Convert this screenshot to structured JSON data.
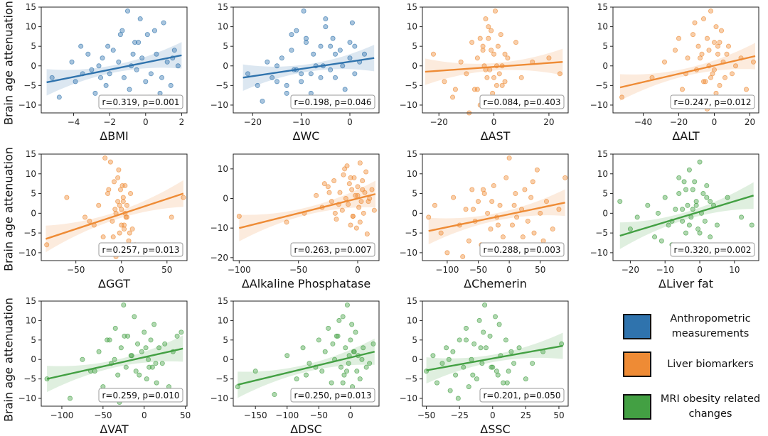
{
  "figure": {
    "ylabel": "Brain age attenuation"
  },
  "legend": [
    {
      "label": "Anthropometric measurements",
      "color": "#2f73ad"
    },
    {
      "label": "Liver biomarkers",
      "color": "#ee8b35"
    },
    {
      "label": "MRI obesity related changes",
      "color": "#43a043"
    }
  ],
  "chart_data": [
    {
      "type": "scatter",
      "xlabel": "ΔBMI",
      "color": "#2f73ad",
      "xlim": [
        -5.8,
        2.3
      ],
      "ylim": [
        -12,
        15
      ],
      "xticks": [
        -4,
        -2,
        0,
        2
      ],
      "yticks": [
        -10,
        -5,
        0,
        5,
        10,
        15
      ],
      "fit": {
        "x": [
          -5.5,
          2.0
        ],
        "y": [
          -4.2,
          2.7
        ]
      },
      "annotation": "r=0.319, p=0.001",
      "x": [
        -5.2,
        -4.8,
        -4.1,
        -3.9,
        -3.5,
        -3.2,
        -3.0,
        -2.8,
        -2.6,
        -2.4,
        -2.2,
        -2.1,
        -2.0,
        -1.8,
        -1.7,
        -1.5,
        -1.4,
        -1.2,
        -1.0,
        -0.9,
        -0.8,
        -0.6,
        -0.5,
        -0.3,
        -0.2,
        0.0,
        0.1,
        0.3,
        0.5,
        0.6,
        0.8,
        1.0,
        1.2,
        1.4,
        1.6,
        1.8,
        -1.0,
        -0.4,
        0.2,
        -2.5,
        -3.6,
        -1.3,
        0.9,
        -0.7,
        1.5
      ],
      "y": [
        -3,
        -8,
        1,
        -4,
        -2,
        3,
        -1,
        -7,
        0,
        2,
        -5,
        5,
        -2,
        4,
        -9,
        1,
        8,
        -3,
        14,
        -6,
        0,
        6,
        -1,
        12,
        2,
        -4,
        8,
        -2,
        9,
        3,
        -7,
        11,
        1,
        -5,
        4,
        0,
        -10,
        6,
        -8,
        -3,
        5,
        9,
        -3,
        3,
        2
      ]
    },
    {
      "type": "scatter",
      "xlabel": "ΔWC",
      "color": "#2f73ad",
      "xlim": [
        -24,
        6
      ],
      "ylim": [
        -12,
        15
      ],
      "xticks": [
        -20,
        -10,
        0
      ],
      "yticks": [
        -10,
        -5,
        0,
        5,
        10,
        15
      ],
      "fit": {
        "x": [
          -22,
          5
        ],
        "y": [
          -3.0,
          2.0
        ]
      },
      "annotation": "r=0.198, p=0.046",
      "x": [
        -21,
        -19,
        -17,
        -16,
        -15,
        -14,
        -13,
        -12,
        -11.5,
        -11,
        -10,
        -9.5,
        -9,
        -8,
        -7.5,
        -7,
        -6,
        -5.5,
        -5,
        -4,
        -3.5,
        -3,
        -2,
        -1.5,
        -1,
        0,
        0.5,
        1,
        2,
        3,
        -18,
        -13,
        -9,
        -6,
        -4,
        -2,
        0,
        -10,
        -7,
        -12,
        -15,
        -5,
        -8,
        -3,
        1,
        -11
      ],
      "y": [
        -2,
        -5,
        1,
        -3,
        0,
        2,
        -7,
        4,
        -1,
        9,
        -4,
        14,
        6,
        -2,
        3,
        -8,
        5,
        0,
        10,
        -1,
        7,
        -3,
        4,
        0,
        -6,
        2,
        11,
        -2,
        1,
        3,
        -9,
        -5,
        7,
        -3,
        5,
        -10,
        6,
        -2,
        0,
        8,
        -4,
        12,
        -7,
        3,
        5,
        -1
      ]
    },
    {
      "type": "scatter",
      "xlabel": "ΔAST",
      "color": "#ee8b35",
      "xlim": [
        -26,
        27
      ],
      "ylim": [
        -12,
        15
      ],
      "xticks": [
        -20,
        0,
        20
      ],
      "yticks": [
        -10,
        -5,
        0,
        5,
        10,
        15
      ],
      "fit": {
        "x": [
          -25,
          25
        ],
        "y": [
          -1.5,
          1.0
        ]
      },
      "annotation": "r=0.084, p=0.403",
      "x": [
        -22,
        -18,
        -15,
        -12,
        -10,
        -8,
        -7,
        -6,
        -5,
        -4,
        -3.5,
        -3,
        -2.5,
        -2,
        -1.5,
        -1,
        -0.5,
        0,
        0.5,
        1,
        1.5,
        2,
        2.5,
        3,
        4,
        5,
        6,
        8,
        10,
        14,
        -9,
        -6,
        -4,
        -2,
        0,
        2,
        4,
        -3,
        -1,
        1,
        3,
        -5,
        20,
        24,
        -14
      ],
      "y": [
        3,
        -4,
        -8,
        1,
        -2,
        6,
        -6,
        2,
        -10,
        4,
        0,
        12,
        -3,
        7,
        -1,
        9,
        -7,
        3,
        14,
        -5,
        5,
        -2,
        8,
        0,
        -4,
        2,
        -9,
        6,
        -3,
        1,
        -12,
        -6,
        5,
        10,
        -3,
        -8,
        3,
        -1,
        4,
        0,
        -5,
        7,
        2,
        -2,
        -6
      ]
    },
    {
      "type": "scatter",
      "xlabel": "ΔALT",
      "color": "#ee8b35",
      "xlim": [
        -57,
        25
      ],
      "ylim": [
        -12,
        15
      ],
      "xticks": [
        -40,
        -20,
        0,
        20
      ],
      "yticks": [
        -10,
        -5,
        0,
        5,
        10,
        15
      ],
      "fit": {
        "x": [
          -53,
          23
        ],
        "y": [
          -5.5,
          2.5
        ]
      },
      "annotation": "r=0.247, p=0.012",
      "x": [
        -52,
        -35,
        -28,
        -22,
        -18,
        -15,
        -12,
        -10,
        -9,
        -8,
        -7,
        -6,
        -5,
        -4,
        -3,
        -2,
        -1,
        0,
        1,
        2,
        3,
        4,
        5,
        6,
        8,
        10,
        12,
        15,
        18,
        22,
        -14,
        -11,
        -6,
        -3,
        0,
        3,
        6,
        -8,
        -2,
        2,
        -20,
        -4,
        7,
        -16,
        1
      ],
      "y": [
        -8,
        -3,
        1,
        4,
        -6,
        2,
        8,
        -1,
        5,
        -10,
        3,
        12,
        -4,
        7,
        0,
        14,
        -2,
        6,
        -7,
        3,
        -5,
        9,
        1,
        -3,
        5,
        -2,
        0,
        2,
        -6,
        1,
        -9,
        11,
        -4,
        4,
        -1,
        6,
        -8,
        2,
        -3,
        5,
        7,
        -11,
        3,
        -2,
        10
      ]
    },
    {
      "type": "scatter",
      "xlabel": "ΔGGT",
      "color": "#ee8b35",
      "xlim": [
        -88,
        72
      ],
      "ylim": [
        -12,
        15
      ],
      "xticks": [
        -50,
        0,
        50
      ],
      "yticks": [
        -10,
        -5,
        0,
        5,
        10,
        15
      ],
      "fit": {
        "x": [
          -83,
          68
        ],
        "y": [
          -6.5,
          5.0
        ]
      },
      "annotation": "r=0.257, p=0.013",
      "x": [
        -82,
        -60,
        -40,
        -30,
        -25,
        -20,
        -15,
        -12,
        -10,
        -8,
        -6,
        -5,
        -4,
        -3,
        -2,
        -1,
        0,
        1,
        2,
        3,
        4,
        5,
        6,
        8,
        10,
        12,
        15,
        55,
        68,
        -35,
        -18,
        -9,
        -4,
        0,
        4,
        9,
        -14,
        -6,
        2,
        6,
        -2,
        1,
        3,
        -7,
        -11
      ],
      "y": [
        -8,
        4,
        -1,
        -3,
        2,
        -6,
        5,
        13,
        -2,
        8,
        0,
        -9,
        3,
        11,
        -5,
        6,
        1,
        -10,
        4,
        -3,
        7,
        -1,
        2,
        -7,
        5,
        -4,
        -8,
        -1,
        4,
        -2,
        14,
        -6,
        9,
        -3,
        0,
        -5,
        6,
        -11,
        3,
        -1,
        2,
        7,
        -4,
        1,
        -9
      ]
    },
    {
      "type": "scatter",
      "xlabel": "ΔAlkaline Phosphatase",
      "color": "#ee8b35",
      "xlim": [
        -105,
        18
      ],
      "ylim": [
        -21,
        15
      ],
      "xticks": [
        -100,
        -50,
        0
      ],
      "yticks": [
        -20,
        -10,
        0,
        10
      ],
      "fit": {
        "x": [
          -100,
          15
        ],
        "y": [
          -10,
          1.5
        ]
      },
      "annotation": "r=0.263, p=0.007",
      "x": [
        -100,
        -60,
        -45,
        -35,
        -30,
        -25,
        -22,
        -20,
        -18,
        -15,
        -13,
        -12,
        -10,
        -9,
        -8,
        -7,
        -6,
        -5,
        -4,
        -3,
        -2,
        -1,
        0,
        1,
        2,
        3,
        4,
        5,
        6,
        7,
        8,
        10,
        12,
        14,
        -28,
        -16,
        -11,
        -4,
        0,
        4,
        -19,
        -6,
        2,
        -24,
        9
      ],
      "y": [
        -6,
        -8,
        -5,
        1,
        -3,
        4,
        -1,
        6,
        -7,
        2,
        -4,
        8,
        0,
        11,
        -2,
        5,
        -9,
        3,
        -6,
        7,
        1,
        -10,
        4,
        -3,
        12,
        -1,
        6,
        -5,
        2,
        9,
        -12,
        0,
        3,
        -4,
        5,
        -2,
        10,
        -6,
        1,
        3,
        -5,
        7,
        -8,
        2,
        -1
      ]
    },
    {
      "type": "scatter",
      "xlabel": "ΔChemerin",
      "color": "#ee8b35",
      "xlim": [
        -140,
        95
      ],
      "ylim": [
        -12,
        15
      ],
      "xticks": [
        -100,
        -50,
        0,
        50
      ],
      "yticks": [
        -10,
        -5,
        0,
        5,
        10,
        15
      ],
      "fit": {
        "x": [
          -130,
          90
        ],
        "y": [
          -4.5,
          2.7
        ]
      },
      "annotation": "r=0.288, p=0.003",
      "x": [
        -130,
        -120,
        -110,
        -100,
        -90,
        -80,
        -70,
        -65,
        -60,
        -55,
        -50,
        -45,
        -40,
        -35,
        -30,
        -25,
        -20,
        -15,
        -10,
        -5,
        0,
        5,
        10,
        15,
        20,
        25,
        30,
        35,
        40,
        45,
        50,
        55,
        60,
        70,
        80,
        90,
        -75,
        -42,
        -18,
        8,
        22,
        38,
        -58,
        12,
        -28
      ],
      "y": [
        -1,
        2,
        -5,
        -10,
        4,
        -3,
        1,
        -7,
        6,
        -2,
        3,
        -8,
        5,
        0,
        -4,
        7,
        -1,
        2,
        -6,
        9,
        14,
        -3,
        5,
        -9,
        1,
        6,
        -2,
        4,
        -5,
        11,
        0,
        -7,
        3,
        -4,
        1,
        9,
        -11,
        6,
        -3,
        2,
        -6,
        8,
        1,
        -1,
        3
      ]
    },
    {
      "type": "scatter",
      "xlabel": "ΔLiver fat",
      "color": "#43a043",
      "xlim": [
        -25,
        17
      ],
      "ylim": [
        -12,
        15
      ],
      "xticks": [
        -20,
        -10,
        0,
        10
      ],
      "yticks": [
        -10,
        -5,
        0,
        5,
        10,
        15
      ],
      "fit": {
        "x": [
          -23,
          15.5
        ],
        "y": [
          -5.7,
          4.5
        ]
      },
      "annotation": "r=0.320, p=0.002",
      "x": [
        -23,
        -20,
        -18,
        -15,
        -13,
        -12,
        -10,
        -9,
        -8,
        -7,
        -6,
        -5,
        -4.5,
        -4,
        -3.5,
        -3,
        -2.5,
        -2,
        -1.5,
        -1,
        -0.5,
        0,
        0.5,
        1,
        1.5,
        2,
        3,
        4,
        5,
        8,
        12,
        15,
        -11,
        -6,
        -3,
        -1,
        1,
        -4,
        -2,
        0,
        2,
        -8,
        -5,
        3,
        -1.5
      ],
      "y": [
        3,
        -4,
        -1,
        2,
        -6,
        0,
        4,
        -3,
        -8,
        1,
        5,
        -2,
        8,
        -5,
        2,
        11,
        -1,
        6,
        -9,
        3,
        -4,
        13,
        0,
        5,
        -2,
        7,
        -6,
        2,
        -3,
        4,
        -1,
        -3,
        -7,
        9,
        -3,
        2,
        -10,
        6,
        1,
        -5,
        4,
        -2,
        1,
        3,
        8
      ]
    },
    {
      "type": "scatter",
      "xlabel": "ΔVAT",
      "color": "#43a043",
      "xlim": [
        -125,
        52
      ],
      "ylim": [
        -12,
        15
      ],
      "xticks": [
        -100,
        -50,
        0,
        50
      ],
      "yticks": [
        -10,
        -5,
        0,
        5,
        10,
        15
      ],
      "fit": {
        "x": [
          -118,
          47
        ],
        "y": [
          -5.0,
          2.8
        ]
      },
      "annotation": "r=0.259, p=0.010",
      "x": [
        -118,
        -90,
        -75,
        -65,
        -55,
        -50,
        -45,
        -40,
        -35,
        -32,
        -28,
        -25,
        -22,
        -20,
        -18,
        -15,
        -12,
        -10,
        -8,
        -5,
        -3,
        0,
        3,
        5,
        8,
        10,
        12,
        15,
        18,
        22,
        25,
        30,
        35,
        40,
        45,
        -60,
        -42,
        -30,
        -16,
        -6,
        2,
        14,
        -24,
        6,
        -36
      ],
      "y": [
        -5,
        -10,
        0,
        -3,
        2,
        -7,
        5,
        -1,
        8,
        -4,
        3,
        14,
        -2,
        6,
        -8,
        1,
        11,
        -3,
        4,
        -9,
        2,
        7,
        -5,
        0,
        5,
        -2,
        9,
        -6,
        3,
        -1,
        4,
        -7,
        2,
        6,
        7,
        -3,
        5,
        -11,
        1,
        -4,
        3,
        -1,
        6,
        -2,
        0
      ]
    },
    {
      "type": "scatter",
      "xlabel": "ΔDSC",
      "color": "#43a043",
      "xlim": [
        -185,
        45
      ],
      "ylim": [
        -12,
        15
      ],
      "xticks": [
        -150,
        -100,
        -50,
        0
      ],
      "yticks": [
        -10,
        -5,
        0,
        5,
        10,
        15
      ],
      "fit": {
        "x": [
          -178,
          38
        ],
        "y": [
          -6.5,
          2.0
        ]
      },
      "annotation": "r=0.250, p=0.013",
      "x": [
        -178,
        -150,
        -120,
        -100,
        -85,
        -75,
        -65,
        -58,
        -50,
        -45,
        -40,
        -35,
        -30,
        -25,
        -20,
        -15,
        -12,
        -10,
        -8,
        -5,
        -3,
        0,
        3,
        5,
        8,
        10,
        12,
        15,
        20,
        25,
        30,
        36,
        -70,
        -42,
        -22,
        -6,
        2,
        18,
        -55,
        -28,
        -12,
        6,
        -35,
        -18,
        -2
      ],
      "y": [
        -7,
        -3,
        -9,
        1,
        -5,
        3,
        -1,
        -8,
        5,
        -3,
        2,
        8,
        -6,
        0,
        6,
        -2,
        11,
        -4,
        3,
        14,
        -1,
        5,
        -7,
        2,
        7,
        -3,
        1,
        -5,
        3,
        -2,
        -1,
        4,
        -4,
        -10,
        6,
        -3,
        9,
        0,
        -2,
        4,
        -6,
        2,
        -8,
        10,
        1
      ]
    },
    {
      "type": "scatter",
      "xlabel": "ΔSSC",
      "color": "#43a043",
      "xlim": [
        -53,
        57
      ],
      "ylim": [
        -12,
        15
      ],
      "xticks": [
        -50,
        -25,
        0,
        25,
        50
      ],
      "yticks": [
        -10,
        -5,
        0,
        5,
        10,
        15
      ],
      "fit": {
        "x": [
          -50,
          53
        ],
        "y": [
          -2.8,
          3.5
        ]
      },
      "annotation": "r=0.201, p=0.050",
      "x": [
        -50,
        -45,
        -42,
        -38,
        -35,
        -32,
        -30,
        -28,
        -25,
        -22,
        -20,
        -18,
        -16,
        -14,
        -12,
        -10,
        -8,
        -6,
        -5,
        -4,
        -2,
        0,
        2,
        4,
        6,
        8,
        10,
        12,
        14,
        16,
        20,
        25,
        30,
        38,
        52,
        -26,
        -15,
        -7,
        -1,
        5,
        11,
        -33,
        -9,
        3,
        -20
      ],
      "y": [
        -3,
        1,
        -6,
        -1,
        3,
        -8,
        2,
        -4,
        5,
        -2,
        8,
        -7,
        0,
        4,
        -5,
        10,
        -1,
        14,
        3,
        -9,
        6,
        -2,
        11,
        -4,
        1,
        -6,
        5,
        -3,
        2,
        -1,
        3,
        -5,
        -1,
        2,
        4,
        -10,
        -4,
        7,
        -2,
        9,
        -6,
        0,
        3,
        -3,
        5
      ]
    }
  ]
}
